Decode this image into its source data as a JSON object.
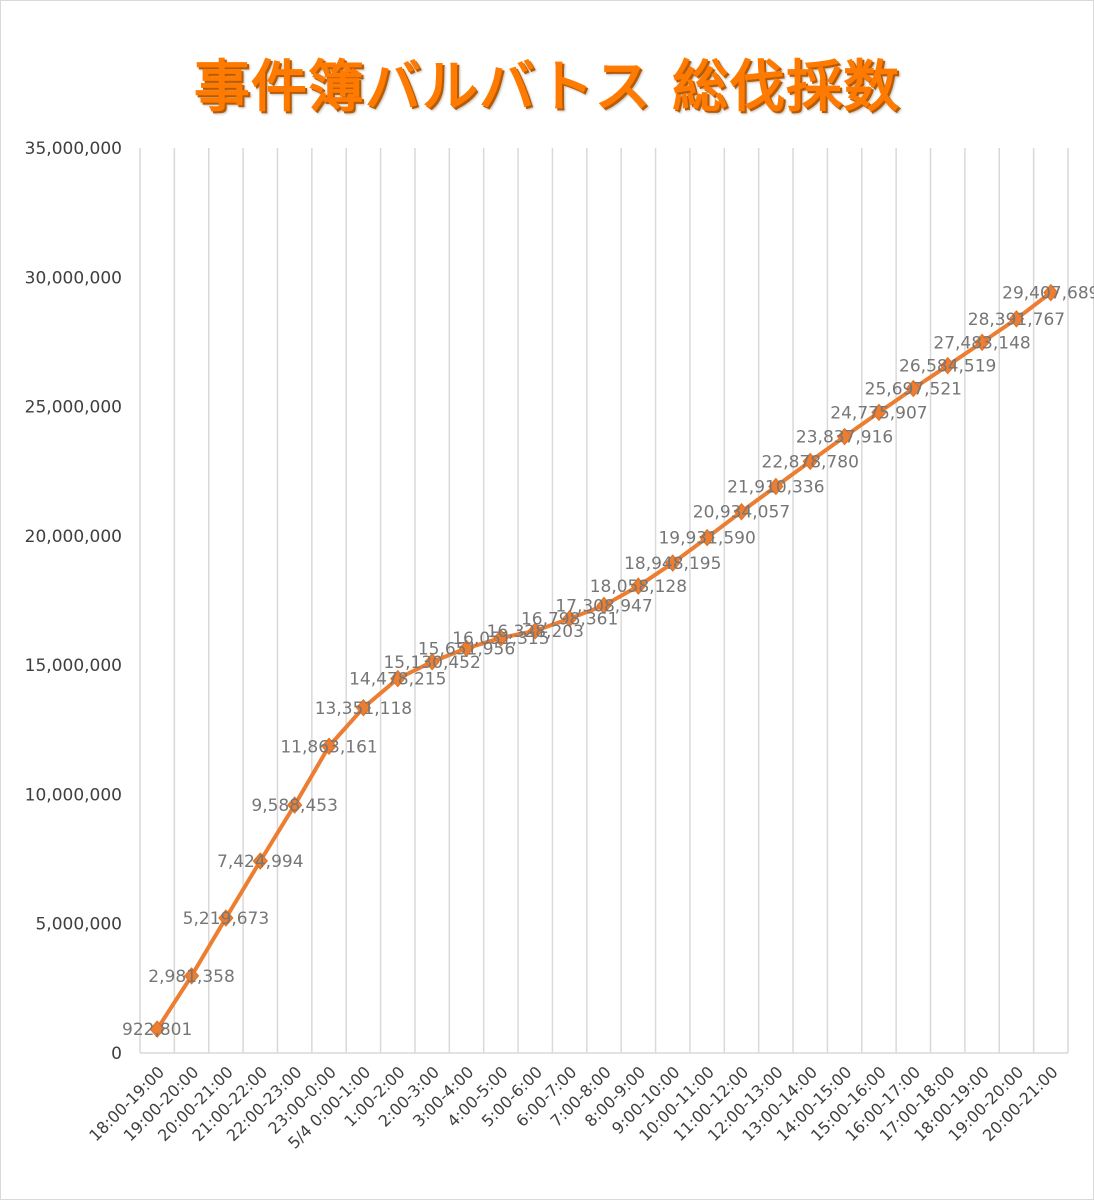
{
  "chart_data": {
    "type": "line",
    "title": "事件簿バルバトス 総伐採数",
    "xlabel": "",
    "ylabel": "",
    "ylim": [
      0,
      35000000
    ],
    "yticks": [
      0,
      5000000,
      10000000,
      15000000,
      20000000,
      25000000,
      30000000,
      35000000
    ],
    "ytick_labels": [
      "0",
      "5,000,000",
      "10,000,000",
      "15,000,000",
      "20,000,000",
      "25,000,000",
      "30,000,000",
      "35,000,000"
    ],
    "grid": "vertical",
    "legend": "none",
    "line_color": "#ed7d31",
    "marker": "diamond",
    "categories": [
      "18:00-19:00",
      "19:00-20:00",
      "20:00-21:00",
      "21:00-22:00",
      "22:00-23:00",
      "23:00-0:00",
      "5/4 0:00-1:00",
      "1:00-2:00",
      "2:00-3:00",
      "3:00-4:00",
      "4:00-5:00",
      "5:00-6:00",
      "6:00-7:00",
      "7:00-8:00",
      "8:00-9:00",
      "9:00-10:00",
      "10:00-11:00",
      "11:00-12:00",
      "12:00-13:00",
      "13:00-14:00",
      "14:00-15:00",
      "15:00-16:00",
      "16:00-17:00",
      "17:00-18:00",
      "18:00-19:00",
      "19:00-20:00",
      "20:00-21:00"
    ],
    "values": [
      922801,
      2981358,
      5219673,
      7424994,
      9588453,
      11863161,
      13351118,
      14478215,
      15130452,
      15651956,
      16051315,
      16328203,
      16798361,
      17308947,
      18058128,
      18948195,
      19931590,
      20934057,
      21910336,
      22878780,
      23837916,
      24775907,
      25697521,
      26584519,
      27483148,
      28391767,
      29407689
    ],
    "data_labels": [
      "922,801",
      "2,981,358",
      "5,219,673",
      "7,424,994",
      "9,588,453",
      "11,863,161",
      "13,351,118",
      "14,478,215",
      "15,130,452",
      "15,651,956",
      "16,051,315",
      "16,328,203",
      "16,798,361",
      "17,308,947",
      "18,058,128",
      "18,948,195",
      "19,931,590",
      "20,934,057",
      "21,910,336",
      "22,878,780",
      "23,837,916",
      "24,775,907",
      "25,697,521",
      "26,584,519",
      "27,483,148",
      "28,391,767",
      "29,407,689"
    ]
  }
}
